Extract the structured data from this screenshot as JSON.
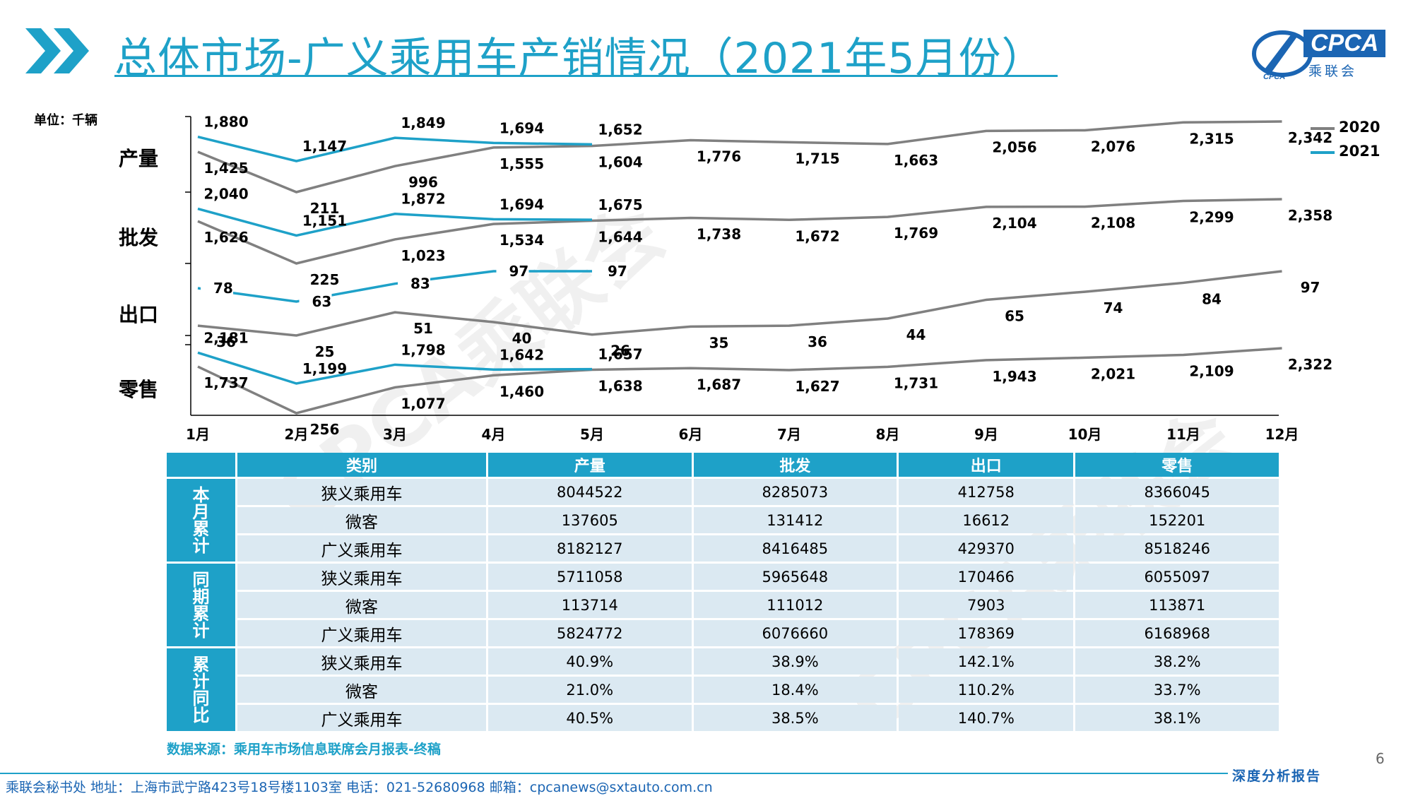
{
  "header": {
    "title": "总体市场-广义乘用车产销情况（2021年5月份）",
    "logo_text": "CPCA",
    "logo_sub": "乘联会",
    "logo_small": "CPCA"
  },
  "unit_label": "单位：千辆",
  "legend": [
    {
      "name": "2020",
      "color": "#808080"
    },
    {
      "name": "2021",
      "color": "#1ea1c8"
    }
  ],
  "watermark": "CPCA乘联会",
  "chart_data": {
    "type": "line",
    "categories": [
      "1月",
      "2月",
      "3月",
      "4月",
      "5月",
      "6月",
      "7月",
      "8月",
      "9月",
      "10月",
      "11月",
      "12月"
    ],
    "unit": "千辆",
    "panels": [
      {
        "label": "产量",
        "series": [
          {
            "name": "2020",
            "values": [
              1425,
              211,
              996,
              1555,
              1604,
              1776,
              1715,
              1663,
              2056,
              2076,
              2315,
              2342
            ],
            "labels": [
              "1,425",
              "211",
              "996",
              "1,555",
              "1,604",
              "1,776",
              "1,715",
              "1,663",
              "2,056",
              "2,076",
              "2,315",
              "2,342"
            ]
          },
          {
            "name": "2021",
            "values": [
              1880,
              1147,
              1849,
              1694,
              1652
            ],
            "labels": [
              "1,880",
              "1,147",
              "1,849",
              "1,694",
              "1,652"
            ]
          }
        ]
      },
      {
        "label": "批发",
        "series": [
          {
            "name": "2020",
            "values": [
              1626,
              225,
              1023,
              1534,
              1644,
              1738,
              1672,
              1769,
              2104,
              2108,
              2299,
              2358
            ],
            "labels": [
              "1,626",
              "225",
              "1,023",
              "1,534",
              "1,644",
              "1,738",
              "1,672",
              "1,769",
              "2,104",
              "2,108",
              "2,299",
              "2,358"
            ]
          },
          {
            "name": "2021",
            "values": [
              2040,
              1151,
              1872,
              1694,
              1675
            ],
            "labels": [
              "2,040",
              "1,151",
              "1,872",
              "1,694",
              "1,675"
            ]
          }
        ]
      },
      {
        "label": "出口",
        "series": [
          {
            "name": "2020",
            "values": [
              36,
              25,
              51,
              40,
              26,
              35,
              36,
              44,
              65,
              74,
              84,
              97
            ],
            "labels": [
              "36",
              "25",
              "51",
              "40",
              "26",
              "35",
              "36",
              "44",
              "65",
              "74",
              "84",
              "97"
            ]
          },
          {
            "name": "2021",
            "values": [
              78,
              63,
              83,
              97,
              97
            ],
            "labels": [
              "78",
              "63",
              "83",
              "97",
              "97"
            ]
          }
        ]
      },
      {
        "label": "零售",
        "series": [
          {
            "name": "2020",
            "values": [
              1737,
              256,
              1077,
              1460,
              1638,
              1687,
              1627,
              1731,
              1943,
              2021,
              2109,
              2322
            ],
            "labels": [
              "1,737",
              "256",
              "1,077",
              "1,460",
              "1,638",
              "1,687",
              "1,627",
              "1,731",
              "1,943",
              "2,021",
              "2,109",
              "2,322"
            ]
          },
          {
            "name": "2021",
            "values": [
              2181,
              1199,
              1798,
              1642,
              1657
            ],
            "labels": [
              "2,181",
              "1,199",
              "1,798",
              "1,642",
              "1,657"
            ]
          }
        ]
      }
    ]
  },
  "table": {
    "headers": [
      "类别",
      "产量",
      "批发",
      "出口",
      "零售"
    ],
    "groups": [
      {
        "label": "本月累计",
        "rows": [
          {
            "cat": "狭义乘用车",
            "vals": [
              "8044522",
              "8285073",
              "412758",
              "8366045"
            ]
          },
          {
            "cat": "微客",
            "vals": [
              "137605",
              "131412",
              "16612",
              "152201"
            ]
          },
          {
            "cat": "广义乘用车",
            "vals": [
              "8182127",
              "8416485",
              "429370",
              "8518246"
            ]
          }
        ]
      },
      {
        "label": "同期累计",
        "rows": [
          {
            "cat": "狭义乘用车",
            "vals": [
              "5711058",
              "5965648",
              "170466",
              "6055097"
            ]
          },
          {
            "cat": "微客",
            "vals": [
              "113714",
              "111012",
              "7903",
              "113871"
            ]
          },
          {
            "cat": "广义乘用车",
            "vals": [
              "5824772",
              "6076660",
              "178369",
              "6168968"
            ]
          }
        ]
      },
      {
        "label": "累计同比",
        "rows": [
          {
            "cat": "狭义乘用车",
            "vals": [
              "40.9%",
              "38.9%",
              "142.1%",
              "38.2%"
            ]
          },
          {
            "cat": "微客",
            "vals": [
              "21.0%",
              "18.4%",
              "110.2%",
              "33.7%"
            ]
          },
          {
            "cat": "广义乘用车",
            "vals": [
              "40.5%",
              "38.5%",
              "140.7%",
              "38.1%"
            ]
          }
        ]
      }
    ]
  },
  "source": "数据来源：乘用车市场信息联席会月报表-终稿",
  "page_number": "6",
  "footer": {
    "tag": "深度分析报告",
    "text": "乘联会秘书处   地址：上海市武宁路423号18号楼1103室  电话：021-52680968   邮箱：cpcanews@sxtauto.com.cn"
  }
}
